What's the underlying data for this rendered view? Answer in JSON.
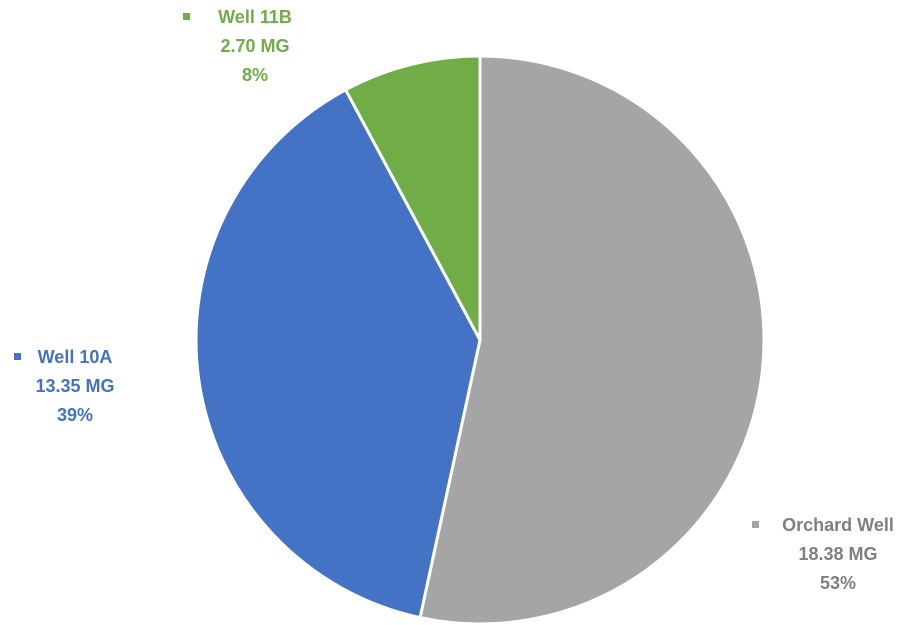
{
  "chart_data": {
    "type": "pie",
    "title": "",
    "start_angle_deg": 0,
    "direction": "clockwise",
    "slices": [
      {
        "name": "Orchard Well",
        "value": 18.38,
        "value_label": "18.38 MG",
        "percent": 53,
        "percent_label": "53%",
        "color": "#a5a5a5"
      },
      {
        "name": "Well 10A",
        "value": 13.35,
        "value_label": "13.35 MG",
        "percent": 39,
        "percent_label": "39%",
        "color": "#4472c4"
      },
      {
        "name": "Well 11B",
        "value": 2.7,
        "value_label": "2.70 MG",
        "percent": 8,
        "percent_label": "8%",
        "color": "#70ad47"
      }
    ],
    "legend_marker_colors": [
      "#a5a5a5",
      "#4472c4",
      "#70ad47"
    ],
    "label_colors": [
      "#7f7f7f",
      "#4472c4",
      "#70ad47"
    ],
    "slice_border_color": "#ffffff"
  }
}
